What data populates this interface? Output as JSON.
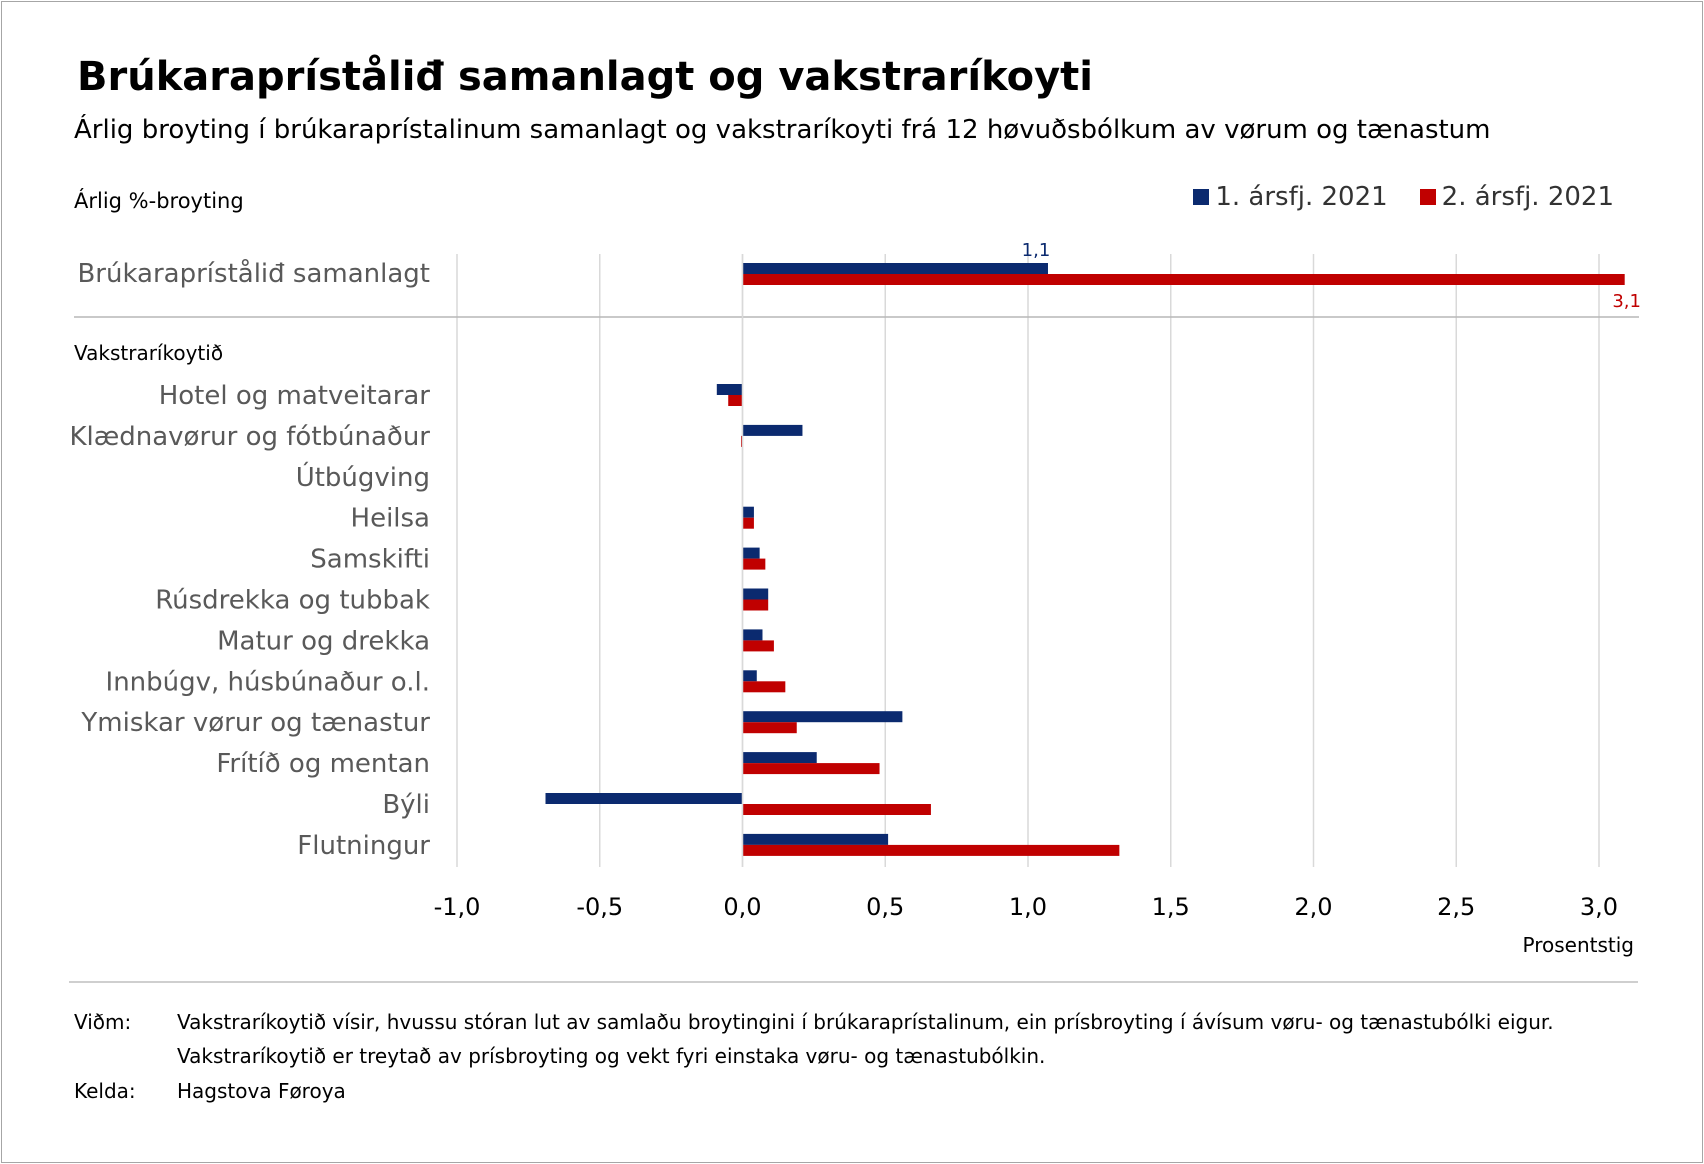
{
  "title": "Brúkarapríståliđ samanlagt og vakstraríkoyti",
  "subtitle": "Árlig broyting í brúkaraprístalinum samanlagt og vakstraríkoyti frá 12 høvuðsbólkum av vørum og tænastum",
  "legend": [
    {
      "label": "1.  ársfj. 2021",
      "color": "#0b2a6f"
    },
    {
      "label": "2.  ársfj. 2021",
      "color": "#c00000"
    }
  ],
  "notes": {
    "vidm_label": "Viðm:",
    "vidm_text_1": "Vakstraríkoytið vísir, hvussu stóran lut av samlaðu broytingini í brúkaraprístalinum, ein prísbroyting í ávísum vøru- og tænastubólki eigur.",
    "vidm_text_2": "Vakstraríkoytið er treytað av prísbroyting og vekt fyri einstaka vøru- og tænastubólkin.",
    "kelda_label": "Kelda:",
    "kelda_text": "Hagstova Føroya"
  },
  "chart_data": {
    "type": "bar",
    "orientation": "horizontal",
    "title": "Brúkarapríståliđ samanlagt og vakstraríkoyti",
    "ylabel": "Árlig %-broyting",
    "xlabel": "Prosentstig",
    "xlim": [
      -1.0,
      3.0
    ],
    "xticks": [
      -1.0,
      -0.5,
      0.0,
      0.5,
      1.0,
      1.5,
      2.0,
      2.5,
      3.0
    ],
    "xtick_labels": [
      "-1,0",
      "-0,5",
      "0,0",
      "0,5",
      "1,0",
      "1,5",
      "2,0",
      "2,5",
      "3,0"
    ],
    "grid": true,
    "total": {
      "category": "Brúkarapríståliđ samanlagt",
      "values": [
        1.07,
        3.09
      ],
      "labels": [
        "1,1",
        "3,1"
      ]
    },
    "group_label": "Vakstraríkoytið",
    "categories": [
      "Hotel og matveitarar",
      "Klædnavørur og fótbúnaður",
      "Útbúgving",
      "Heilsa",
      "Samskifti",
      "Rúsdrekka og tubbak",
      "Matur og drekka",
      "Innbúgv,  húsbúnaður o.l.",
      "Ymiskar vørur og tænastur",
      "Frítíð og mentan",
      "Býli",
      "Flutningur"
    ],
    "series": [
      {
        "name": "1.  ársfj. 2021",
        "color": "#0b2a6f",
        "values": [
          -0.09,
          0.21,
          0.0,
          0.04,
          0.06,
          0.09,
          0.07,
          0.05,
          0.56,
          0.26,
          -0.69,
          0.51
        ]
      },
      {
        "name": "2.  ársfj. 2021",
        "color": "#c00000",
        "values": [
          -0.05,
          -0.005,
          0.0,
          0.04,
          0.08,
          0.09,
          0.11,
          0.15,
          0.19,
          0.48,
          0.66,
          1.32
        ]
      }
    ]
  }
}
